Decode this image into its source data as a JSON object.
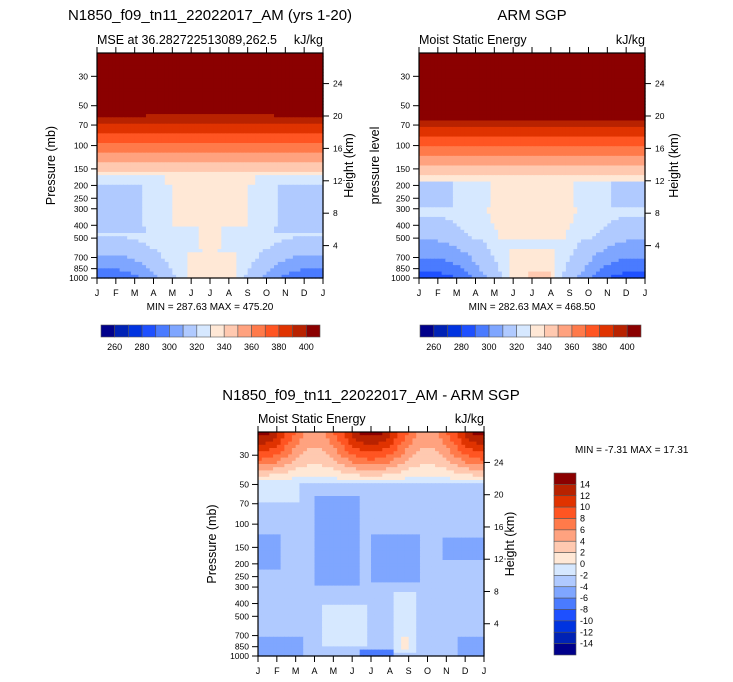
{
  "chart_data": [
    {
      "type": "heatmap",
      "id": "model",
      "title": "N1850_f09_tn11_22022017_AM (yrs 1-20)",
      "subtitle_left": "MSE at 36.282722513089,262.5",
      "subtitle_right": "kJ/kg",
      "xlabel": "",
      "ylabel": "Pressure (mb)",
      "ylabel_right": "Height (km)",
      "x_ticks": [
        "J",
        "F",
        "M",
        "A",
        "M",
        "J",
        "J",
        "A",
        "S",
        "O",
        "N",
        "D",
        "J"
      ],
      "y_ticks": [
        30,
        50,
        70,
        100,
        150,
        200,
        250,
        300,
        400,
        500,
        700,
        850,
        1000
      ],
      "y_ticks_right": [
        24,
        20,
        16,
        12,
        8,
        4
      ],
      "ylim": [
        1000,
        20
      ],
      "minmax": "MIN = 287.63 MAX = 475.20",
      "levels": [
        260,
        270,
        280,
        290,
        300,
        310,
        320,
        330,
        340,
        350,
        360,
        370,
        380,
        390,
        400
      ],
      "colorbar_labels": [
        260,
        280,
        300,
        320,
        340,
        360,
        380,
        400
      ],
      "colorbar_orientation": "horizontal"
    },
    {
      "type": "heatmap",
      "id": "obs",
      "title": "ARM SGP",
      "subtitle_left": "Moist Static Energy",
      "subtitle_right": "kJ/kg",
      "ylabel": "pressure level",
      "ylabel_right": "Height (km)",
      "x_ticks": [
        "J",
        "F",
        "M",
        "A",
        "M",
        "J",
        "J",
        "A",
        "S",
        "O",
        "N",
        "D",
        "J"
      ],
      "y_ticks": [
        30,
        50,
        70,
        100,
        150,
        200,
        250,
        300,
        400,
        500,
        700,
        850,
        1000
      ],
      "y_ticks_right": [
        24,
        20,
        16,
        12,
        8,
        4
      ],
      "ylim": [
        1000,
        20
      ],
      "minmax": "MIN = 282.63 MAX = 468.50",
      "levels": [
        260,
        270,
        280,
        290,
        300,
        310,
        320,
        330,
        340,
        350,
        360,
        370,
        380,
        390,
        400
      ],
      "colorbar_labels": [
        260,
        280,
        300,
        320,
        340,
        360,
        380,
        400
      ],
      "colorbar_orientation": "horizontal"
    },
    {
      "type": "heatmap",
      "id": "diff",
      "title": "N1850_f09_tn11_22022017_AM - ARM SGP",
      "subtitle_left": "Moist Static Energy",
      "subtitle_right": "kJ/kg",
      "ylabel": "Pressure (mb)",
      "ylabel_right": "Height (km)",
      "x_ticks": [
        "J",
        "F",
        "M",
        "A",
        "M",
        "J",
        "J",
        "A",
        "S",
        "O",
        "N",
        "D",
        "J"
      ],
      "y_ticks": [
        30,
        50,
        70,
        100,
        150,
        200,
        250,
        300,
        400,
        500,
        700,
        850,
        1000
      ],
      "y_ticks_right": [
        24,
        20,
        16,
        12,
        8,
        4
      ],
      "ylim": [
        1000,
        20
      ],
      "minmax": "MIN =  -7.31 MAX =  17.31",
      "levels": [
        -14,
        -12,
        -10,
        -8,
        -6,
        -4,
        -2,
        0,
        2,
        4,
        6,
        8,
        10,
        12,
        14
      ],
      "colorbar_labels": [
        14,
        12,
        10,
        8,
        6,
        4,
        2,
        0,
        -2,
        -4,
        -6,
        -8,
        -10,
        -12,
        -14
      ],
      "colorbar_orientation": "vertical"
    }
  ],
  "colormap": [
    "#00008b",
    "#0022b5",
    "#0033e0",
    "#1e50ff",
    "#4a7bff",
    "#7fa6ff",
    "#b0caff",
    "#d6e8ff",
    "#ffe8d6",
    "#ffc9b0",
    "#ffa27f",
    "#ff7a4a",
    "#ff5522",
    "#e03300",
    "#b82200",
    "#8b0000"
  ]
}
